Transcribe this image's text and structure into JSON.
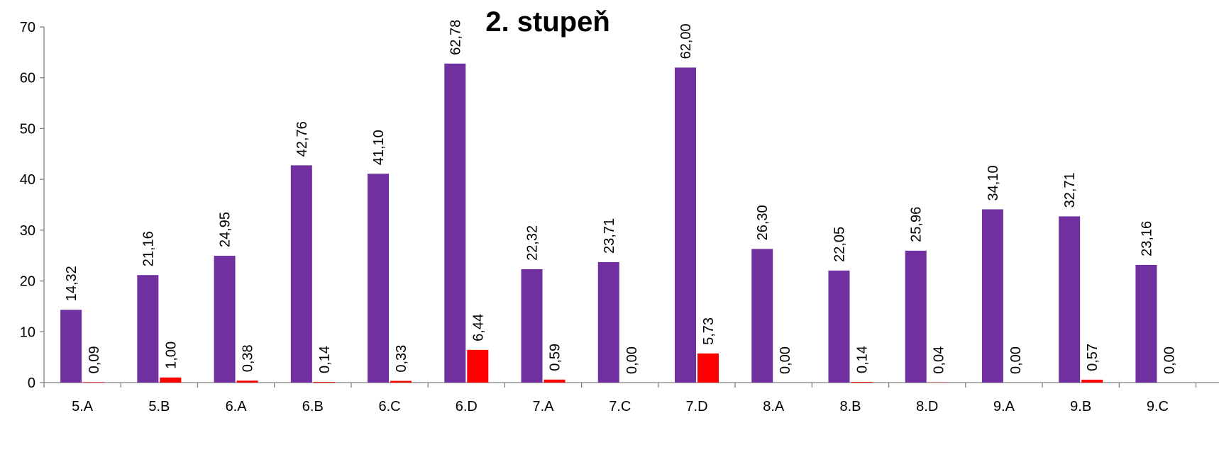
{
  "chart_data": {
    "type": "bar",
    "title": "2. stupeň",
    "xlabel": "",
    "ylabel": "",
    "ylim": [
      0,
      70
    ],
    "yticks": [
      "0",
      "10",
      "20",
      "30",
      "40",
      "50",
      "60",
      "70"
    ],
    "grid": false,
    "legend": "none",
    "categories": [
      "5.A",
      "5.B",
      "6.A",
      "6.B",
      "6.C",
      "6.D",
      "7.A",
      "7.C",
      "7.D",
      "8.A",
      "8.B",
      "8.D",
      "9.A",
      "9.B",
      "9.C"
    ],
    "series": [
      {
        "color": "#7030A0",
        "values": [
          14.32,
          21.16,
          24.95,
          42.76,
          41.1,
          62.78,
          22.32,
          23.71,
          62.0,
          26.3,
          22.05,
          25.96,
          34.1,
          32.71,
          23.16
        ],
        "labels": [
          "14,32",
          "21,16",
          "24,95",
          "42,76",
          "41,10",
          "62,78",
          "22,32",
          "23,71",
          "62,00",
          "26,30",
          "22,05",
          "25,96",
          "34,10",
          "32,71",
          "23,16"
        ]
      },
      {
        "color": "#FF0000",
        "values": [
          0.09,
          1.0,
          0.38,
          0.14,
          0.33,
          6.44,
          0.59,
          0.0,
          5.73,
          0.0,
          0.14,
          0.04,
          0.0,
          0.57,
          0.0
        ],
        "labels": [
          "0,09",
          "1,00",
          "0,38",
          "0,14",
          "0,33",
          "6,44",
          "0,59",
          "0,00",
          "5,73",
          "0,00",
          "0,14",
          "0,04",
          "0,00",
          "0,57",
          "0,00"
        ]
      }
    ]
  }
}
